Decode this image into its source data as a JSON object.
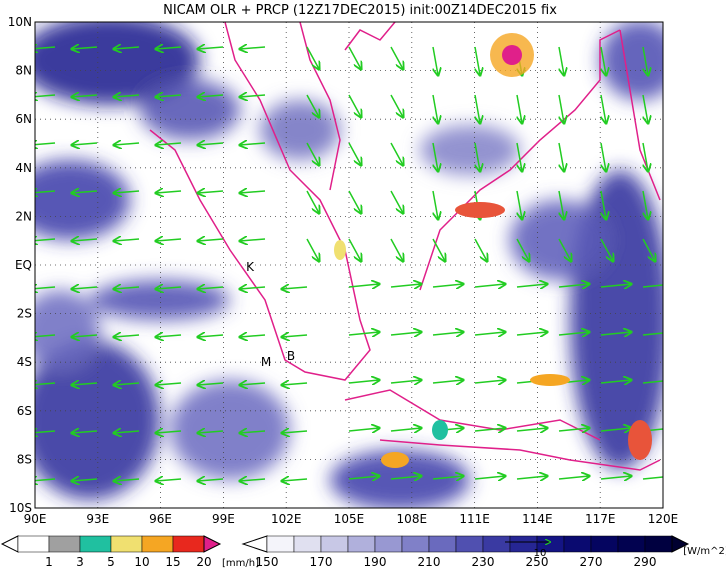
{
  "header": {
    "title": "NICAM OLR + PRCP (12Z17DEC2015) init:00Z14DEC2015 fix"
  },
  "map": {
    "lat_labels": [
      "10N",
      "8N",
      "6N",
      "4N",
      "2N",
      "EQ",
      "2S",
      "4S",
      "6S",
      "8S",
      "10S"
    ],
    "lon_labels": [
      "90E",
      "93E",
      "96E",
      "99E",
      "102E",
      "105E",
      "108E",
      "111E",
      "114E",
      "117E",
      "120E"
    ],
    "stations": [
      "K",
      "M",
      "B"
    ],
    "vector_reference": "10"
  },
  "precip_legend": {
    "labels": [
      "1",
      "3",
      "5",
      "10",
      "15",
      "20"
    ],
    "units": "[mm/h]"
  },
  "olr_legend": {
    "labels": [
      "150",
      "170",
      "190",
      "210",
      "230",
      "250",
      "270",
      "290"
    ],
    "units": "[W/m^2]"
  }
}
